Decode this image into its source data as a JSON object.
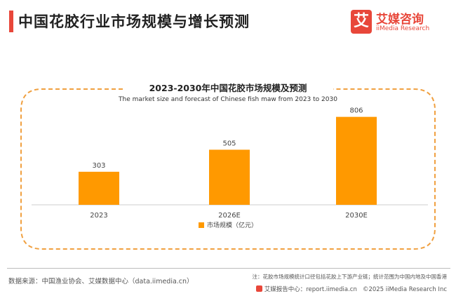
{
  "header": {
    "title": "中国花胶行业市场规模与增长预测",
    "logo_mark": "艾",
    "logo_cn": "艾媒咨询",
    "logo_en": "iiMedia Research"
  },
  "chart_data": {
    "type": "bar",
    "title": "2023-2030年中国花胶市场规模及预测",
    "subtitle": "The market size and forecast of Chinese fish maw from 2023 to 2030",
    "categories": [
      "2023",
      "2026E",
      "2030E"
    ],
    "series": [
      {
        "name": "市场规模（亿元）",
        "values": [
          303,
          505,
          806
        ],
        "color": "#ff9900"
      }
    ],
    "ylim": [
      0,
      900
    ],
    "grid": false,
    "legend": "bottom",
    "accent_color": "#f0a040"
  },
  "footer": {
    "source": "数据来源：中国渔业协会、艾媒数据中心（data.iimedia.cn）",
    "note": "注：花胶市场规模统计口径包括花胶上下游产业链；统计范围为中国内地及中国香港",
    "center": "艾媒报告中心：report.iimedia.cn",
    "copyright": "©2025  iiMedia Research Inc"
  }
}
